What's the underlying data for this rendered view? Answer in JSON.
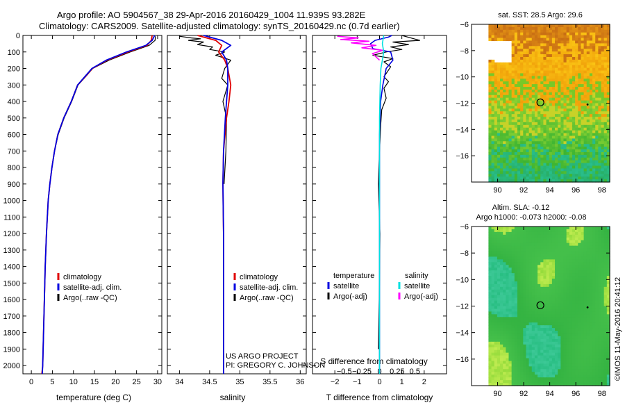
{
  "header": {
    "line1": "Argo profile: AO 5904567_38 29-Apr-2016 20160429_1004 11.939S 93.282E",
    "line2": "Climatology: CARS2009. Satellite-adjusted climatology: synTS_20160429.nc (0.7d earlier)"
  },
  "credit": {
    "project": "US ARGO PROJECT",
    "pi": "PI: GREGORY C. JOHNSON",
    "stamp": "©IMOS 11-May-2016 20:41:12"
  },
  "colors": {
    "climatology": "#e00000",
    "satellite": "#0000e0",
    "argo": "#000000",
    "sal_satellite": "#00e0e0",
    "sal_argo": "#ff00ff"
  },
  "chart_data": [
    {
      "type": "line",
      "id": "temperature",
      "xlabel": "temperature (deg C)",
      "ylabel": "",
      "xlim": [
        -2,
        31
      ],
      "ylim": [
        2050,
        0
      ],
      "xticks": [
        0,
        5,
        10,
        15,
        20,
        25,
        30
      ],
      "xtick_labels": [
        "0",
        "5",
        "10",
        "15",
        "20",
        "25",
        "30"
      ],
      "yticks": [
        0,
        100,
        200,
        300,
        400,
        500,
        600,
        700,
        800,
        900,
        1000,
        1100,
        1200,
        1300,
        1400,
        1500,
        1600,
        1700,
        1800,
        1900,
        2000
      ],
      "ytick_labels": [
        "0",
        "100",
        "200",
        "300",
        "400",
        "500",
        "600",
        "700",
        "800",
        "900",
        "1000",
        "1100",
        "1200",
        "1300",
        "1400",
        "1500",
        "1600",
        "1700",
        "1800",
        "1900",
        "2000"
      ],
      "legend": [
        "climatology",
        "satellite-adj. clim.",
        "Argo(..raw -QC)"
      ],
      "series": [
        {
          "name": "climatology",
          "x": [
            28.7,
            28.5,
            27.5,
            23,
            18,
            14.5,
            12.8,
            11,
            9.5,
            7.7,
            6.3,
            5.5,
            4.9,
            4.4,
            4,
            3.6,
            3.3,
            3.1,
            2.9,
            2.7,
            2.5
          ],
          "y": [
            0,
            30,
            60,
            100,
            150,
            200,
            250,
            300,
            400,
            500,
            600,
            700,
            800,
            900,
            1000,
            1200,
            1400,
            1600,
            1800,
            2000,
            2050
          ]
        },
        {
          "name": "satellite-adj. clim.",
          "x": [
            29.3,
            28.7,
            27.2,
            22.6,
            17.8,
            14.4,
            12.7,
            11,
            9.5,
            7.7,
            6.3,
            5.5,
            4.9,
            4.4,
            4,
            3.6,
            3.3,
            3.1,
            2.9,
            2.7,
            2.6
          ],
          "y": [
            0,
            30,
            60,
            100,
            150,
            200,
            250,
            300,
            400,
            500,
            600,
            700,
            800,
            900,
            1000,
            1200,
            1400,
            1600,
            1800,
            2000,
            2050
          ]
        },
        {
          "name": "Argo(..raw -QC)",
          "x": [
            29.5,
            29.4,
            28,
            23.5,
            18.5,
            14.6,
            12.9,
            11.1,
            9.6,
            7.8,
            6.4,
            5.5,
            4.9,
            4.4,
            4,
            3.6
          ],
          "y": [
            5,
            30,
            60,
            100,
            150,
            200,
            250,
            300,
            400,
            500,
            600,
            700,
            800,
            900,
            1000,
            1200
          ]
        }
      ]
    },
    {
      "type": "line",
      "id": "salinity",
      "xlabel": "salinity",
      "ylabel": "",
      "xlim": [
        33.8,
        36.1
      ],
      "ylim": [
        2050,
        0
      ],
      "xticks": [
        34,
        34.5,
        35,
        35.5,
        36
      ],
      "xtick_labels": [
        "34",
        "34.5",
        "35",
        "35.5",
        "36"
      ],
      "legend": [
        "climatology",
        "satellite-adj. clim.",
        "Argo(..raw -QC)"
      ],
      "series": [
        {
          "name": "climatology",
          "x": [
            34.3,
            34.4,
            34.6,
            34.7,
            34.65,
            34.75,
            34.8,
            34.85,
            34.82,
            34.78,
            34.73,
            34.72,
            34.73,
            34.73,
            34.73
          ],
          "y": [
            0,
            10,
            30,
            60,
            100,
            150,
            200,
            300,
            400,
            500,
            700,
            900,
            1200,
            1600,
            2050
          ]
        },
        {
          "name": "satellite-adj. clim.",
          "x": [
            34.4,
            34.5,
            34.7,
            34.85,
            34.7,
            34.78,
            34.8,
            34.8,
            34.78,
            34.76,
            34.73,
            34.72,
            34.73,
            34.73,
            34.73
          ],
          "y": [
            0,
            10,
            30,
            60,
            100,
            150,
            200,
            300,
            400,
            500,
            700,
            900,
            1200,
            1600,
            2050
          ]
        },
        {
          "name": "Argo(..raw -QC)",
          "x": [
            34.0,
            34.2,
            34.35,
            34.15,
            34.4,
            34.3,
            34.55,
            34.5,
            34.75,
            34.6,
            34.85,
            34.75,
            34.7,
            34.8,
            34.72,
            34.78,
            34.77,
            34.74
          ],
          "y": [
            5,
            15,
            20,
            30,
            40,
            55,
            70,
            85,
            100,
            120,
            150,
            200,
            260,
            300,
            400,
            500,
            700,
            900
          ]
        }
      ]
    },
    {
      "type": "line",
      "id": "difference",
      "xlabel": "T difference from climatology",
      "title": "S difference from climatology",
      "ylabel": "",
      "xlim": [
        -3,
        3
      ],
      "ylim": [
        2050,
        0
      ],
      "xticks": [
        -2,
        -1,
        0,
        1,
        2
      ],
      "xtick_labels": [
        "−2",
        "−1",
        "0",
        "1",
        "2"
      ],
      "sxticks": [
        -0.5,
        -0.25,
        0,
        0.25,
        0.5
      ],
      "sxtick_labels": [
        "−0.5",
        "−0.25",
        "0",
        "0.25",
        "0.5"
      ],
      "legend_headers": [
        "temperature",
        "salinity"
      ],
      "legend": [
        "satellite",
        "Argo(-adj)",
        "satellite",
        "Argo(-adj)"
      ],
      "series": [
        {
          "name": "temperature satellite",
          "x": [
            0.55,
            0.4,
            -0.2,
            -0.4,
            -0.3,
            0.5,
            0.6,
            0.3,
            0.15,
            0.05,
            0,
            0,
            0
          ],
          "y": [
            0,
            10,
            30,
            50,
            80,
            100,
            150,
            200,
            300,
            400,
            600,
            1000,
            2050
          ]
        },
        {
          "name": "temperature Argo(-adj)",
          "x": [
            1.0,
            1.4,
            1.8,
            0.6,
            1.3,
            0.5,
            1.0,
            0.3,
            -0.3,
            0.6,
            0.2,
            0.5,
            0.35,
            0.2,
            0.4,
            0.2,
            0.3,
            0.1,
            0.05,
            0,
            -0.05,
            0.02,
            0,
            -0.05
          ],
          "y": [
            0,
            15,
            30,
            40,
            55,
            70,
            85,
            100,
            120,
            140,
            160,
            190,
            220,
            250,
            280,
            320,
            380,
            450,
            550,
            700,
            900,
            1200,
            1500,
            1900
          ]
        },
        {
          "name": "salinity satellite",
          "x": [
            0.06,
            0.04,
            0.06,
            0.04,
            0.02,
            0.01,
            0,
            0,
            0
          ],
          "y": [
            0,
            50,
            100,
            150,
            200,
            300,
            500,
            1000,
            2050
          ]
        },
        {
          "name": "salinity Argo(-adj)",
          "x": [
            -0.6,
            -0.3,
            -0.55,
            -0.15,
            -0.4,
            -0.05,
            -0.25,
            0.05,
            -0.1,
            0
          ],
          "y": [
            5,
            15,
            25,
            35,
            45,
            60,
            75,
            90,
            110,
            150
          ]
        }
      ]
    },
    {
      "type": "heatmap",
      "id": "sst_map",
      "title": "sat. SST: 28.5 Argo: 29.6",
      "xlim": [
        88,
        98.6
      ],
      "ylim": [
        -18,
        -6
      ],
      "xticks": [
        90,
        92,
        94,
        96,
        98
      ],
      "xtick_labels": [
        "90",
        "92",
        "94",
        "96",
        "98"
      ],
      "yticks": [
        -6,
        -8,
        -10,
        -12,
        -14,
        -16
      ],
      "ytick_labels": [
        "−6",
        "−8",
        "−10",
        "−12",
        "−14",
        "−16"
      ],
      "float_position": [
        93.282,
        -11.939
      ],
      "secondary_position": [
        96.9,
        -12.1
      ]
    },
    {
      "type": "heatmap",
      "id": "sla_map",
      "title": "Altim. SLA: -0.12",
      "subtitle": "Argo h1000: -0.073 h2000: -0.08",
      "xlim": [
        88,
        98.6
      ],
      "ylim": [
        -18,
        -6
      ],
      "xticks": [
        90,
        92,
        94,
        96,
        98
      ],
      "xtick_labels": [
        "90",
        "92",
        "94",
        "96",
        "98"
      ],
      "yticks": [
        -6,
        -8,
        -10,
        -12,
        -14,
        -16
      ],
      "ytick_labels": [
        "−6",
        "−8",
        "−10",
        "−12",
        "−14",
        "−16"
      ],
      "float_position": [
        93.282,
        -11.939
      ],
      "secondary_position": [
        96.9,
        -12.1
      ]
    }
  ]
}
